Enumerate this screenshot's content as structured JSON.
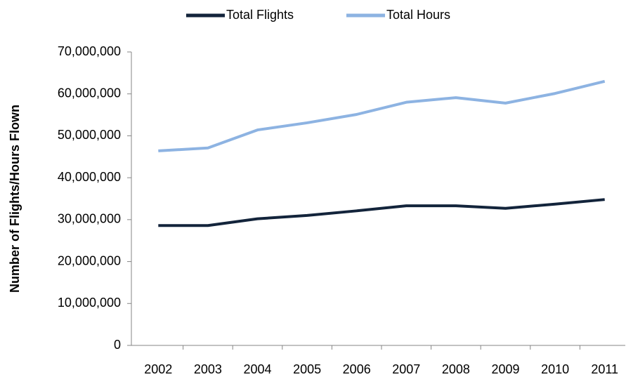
{
  "chart_data": {
    "type": "line",
    "y_label": "Number of Flights/Hours Flown",
    "categories": [
      "2002",
      "2003",
      "2004",
      "2005",
      "2006",
      "2007",
      "2008",
      "2009",
      "2010",
      "2011"
    ],
    "series": [
      {
        "name": "Total Flights",
        "color": "#13243b",
        "values": [
          28600000,
          28600000,
          30200000,
          31000000,
          32100000,
          33300000,
          33300000,
          32700000,
          33700000,
          34800000
        ]
      },
      {
        "name": "Total Hours",
        "color": "#8db3e2",
        "values": [
          46400000,
          47100000,
          51400000,
          53100000,
          55100000,
          58000000,
          59100000,
          57800000,
          60100000,
          63000000
        ]
      }
    ],
    "ylim": [
      0,
      70000000
    ],
    "yticks": [
      0,
      {
        "value": 10000000,
        "label": "10,000,000"
      },
      {
        "value": 20000000,
        "label": "20,000,000"
      },
      {
        "value": 30000000,
        "label": "30,000,000"
      },
      {
        "value": 40000000,
        "label": "40,000,000"
      },
      {
        "value": 50000000,
        "label": "50,000,000"
      },
      {
        "value": 60000000,
        "label": "60,000,000"
      },
      {
        "value": 70000000,
        "label": "70,000,000"
      }
    ],
    "legend": "top",
    "grid": false
  }
}
